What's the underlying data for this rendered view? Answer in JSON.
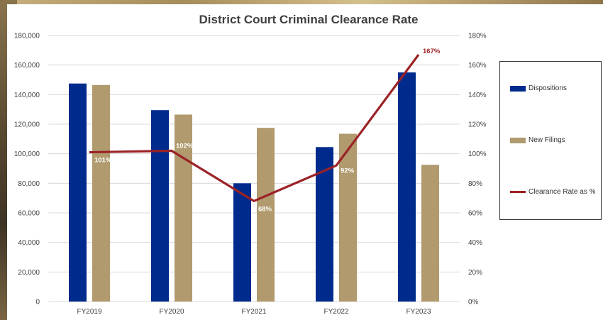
{
  "chart_data": {
    "type": "bar",
    "title": "District Court Criminal Clearance Rate",
    "categories": [
      "FY2019",
      "FY2020",
      "FY2021",
      "FY2022",
      "FY2023"
    ],
    "series": [
      {
        "name": "Dispositions",
        "kind": "bar",
        "axis": "left",
        "color": "#002b8c",
        "values": [
          147500,
          129500,
          80000,
          104500,
          155000
        ]
      },
      {
        "name": "New Filings",
        "kind": "bar",
        "axis": "left",
        "color": "#b09a6e",
        "values": [
          146500,
          126500,
          117500,
          113500,
          92500
        ]
      },
      {
        "name": "Clearance Rate as %",
        "kind": "line",
        "axis": "right",
        "color": "#9b2226",
        "values": [
          101,
          102,
          68,
          92,
          167
        ],
        "labels": [
          "101%",
          "102%",
          "68%",
          "92%",
          "167%"
        ]
      }
    ],
    "left_axis": {
      "min": 0,
      "max": 180000,
      "step": 20000,
      "tick_labels": [
        "0",
        "20,000",
        "40,000",
        "60,000",
        "80,000",
        "100,000",
        "120,000",
        "140,000",
        "160,000",
        "180,000"
      ]
    },
    "right_axis": {
      "min": 0,
      "max": 180,
      "step": 20,
      "tick_labels": [
        "0%",
        "20%",
        "40%",
        "60%",
        "80%",
        "100%",
        "120%",
        "140%",
        "160%",
        "180%"
      ]
    },
    "grid": true,
    "legend_position": "right"
  },
  "legend": {
    "dispositions": "Dispositions",
    "new_filings": "New Filings",
    "clearance_rate": "Clearance Rate as %"
  },
  "colors": {
    "dispositions": "#002b8c",
    "new_filings": "#b09a6e",
    "clearance_rate": "#9b2226",
    "gridline": "#d9d9d9"
  }
}
